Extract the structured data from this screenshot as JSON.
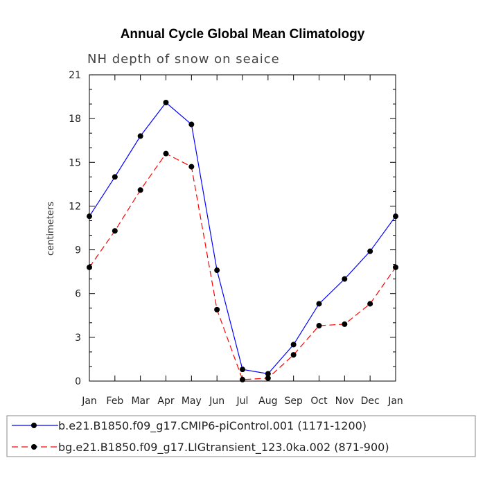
{
  "chart_data": {
    "type": "line",
    "title": "Annual Cycle Global Mean Climatology",
    "subtitle": "NH depth of snow on seaice",
    "xlabel": "",
    "ylabel": "centimeters",
    "categories": [
      "Jan",
      "Feb",
      "Mar",
      "Apr",
      "May",
      "Jun",
      "Jul",
      "Aug",
      "Sep",
      "Oct",
      "Nov",
      "Dec",
      "Jan"
    ],
    "ylim": [
      0,
      21
    ],
    "yticks": [
      0,
      3,
      6,
      9,
      12,
      15,
      18,
      21
    ],
    "series": [
      {
        "name": "b.e21.B1850.f09_g17.CMIP6-piControl.001 (1171-1200)",
        "color": "#0000ff",
        "dash": "solid",
        "marker": "filled-circle",
        "values": [
          11.3,
          14.0,
          16.8,
          19.1,
          17.6,
          7.6,
          0.8,
          0.5,
          2.5,
          5.3,
          7.0,
          8.9,
          11.3
        ]
      },
      {
        "name": "bg.e21.B1850.f09_g17.LIGtransient_123.0ka.002 (871-900)",
        "color": "#ff0000",
        "dash": "dashed",
        "marker": "filled-circle",
        "values": [
          7.8,
          10.3,
          13.1,
          15.6,
          14.7,
          4.9,
          0.1,
          0.2,
          1.8,
          3.8,
          3.9,
          5.3,
          7.8
        ]
      }
    ],
    "legend_position": "bottom"
  }
}
